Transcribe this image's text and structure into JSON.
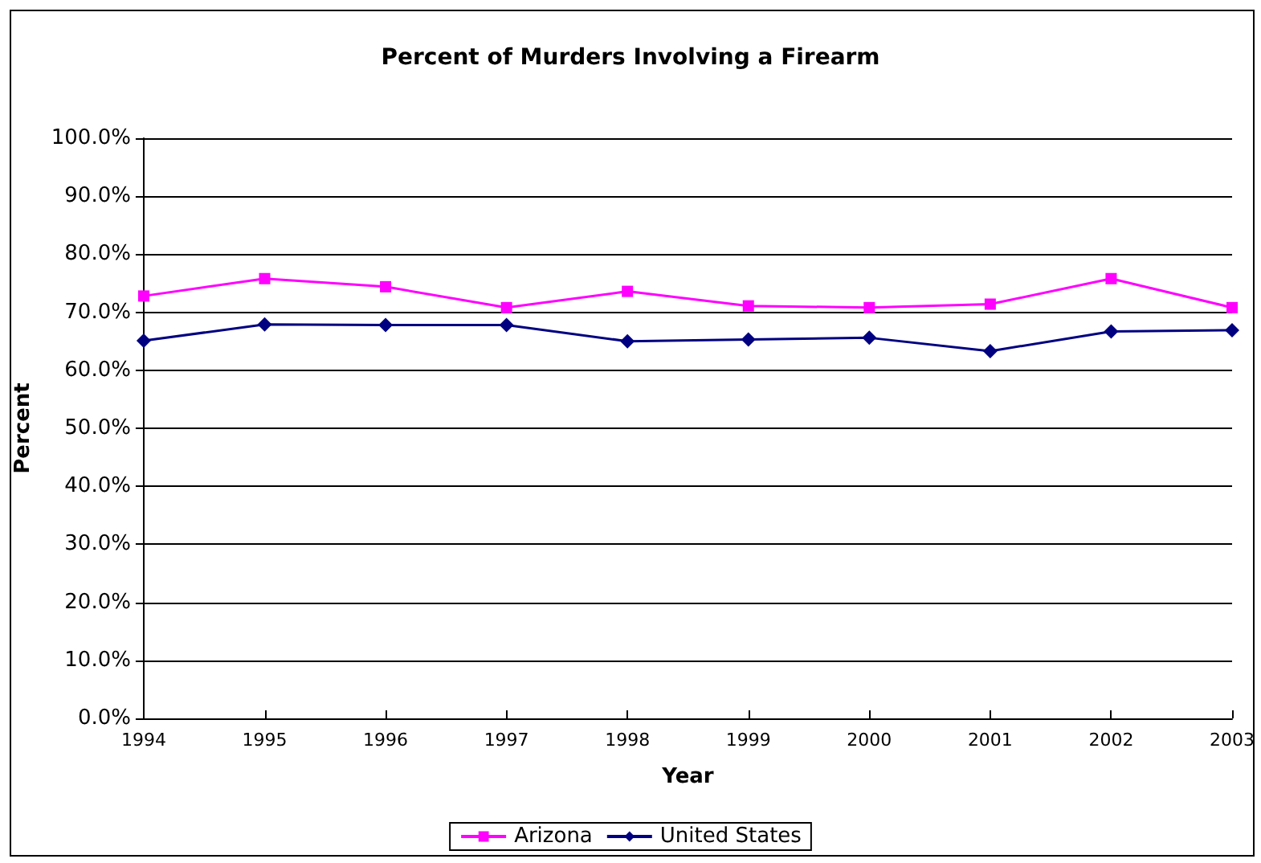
{
  "chart_data": {
    "type": "line",
    "title": "Percent of Murders Involving a Firearm",
    "xlabel": "Year",
    "ylabel": "Percent",
    "x": [
      1994,
      1995,
      1996,
      1997,
      1998,
      1999,
      2000,
      2001,
      2002,
      2003
    ],
    "series": [
      {
        "name": "Arizona",
        "color": "#ff00ff",
        "marker": "square",
        "values": [
          72.8,
          75.8,
          74.4,
          70.8,
          73.6,
          71.1,
          70.8,
          71.4,
          75.8,
          70.8
        ]
      },
      {
        "name": "United States",
        "color": "#000080",
        "marker": "diamond",
        "values": [
          65.1,
          67.9,
          67.8,
          67.8,
          65.0,
          65.3,
          65.6,
          63.3,
          66.7,
          66.9
        ]
      }
    ],
    "xlim": [
      1994,
      2003
    ],
    "xticks": [
      1994,
      1995,
      1996,
      1997,
      1998,
      1999,
      2000,
      2001,
      2002,
      2003
    ],
    "ylim": [
      0,
      100
    ],
    "yticks": [
      {
        "value": 0,
        "label": "0.0%"
      },
      {
        "value": 10,
        "label": "10.0%"
      },
      {
        "value": 20,
        "label": "20.0%"
      },
      {
        "value": 30,
        "label": "30.0%"
      },
      {
        "value": 40,
        "label": "40.0%"
      },
      {
        "value": 50,
        "label": "50.0%"
      },
      {
        "value": 60,
        "label": "60.0%"
      },
      {
        "value": 70,
        "label": "70.0%"
      },
      {
        "value": 80,
        "label": "80.0%"
      },
      {
        "value": 90,
        "label": "90.0%"
      },
      {
        "value": 100,
        "label": "100.0%"
      }
    ],
    "grid": "y",
    "legend": "bottom",
    "line_style": "solid"
  }
}
